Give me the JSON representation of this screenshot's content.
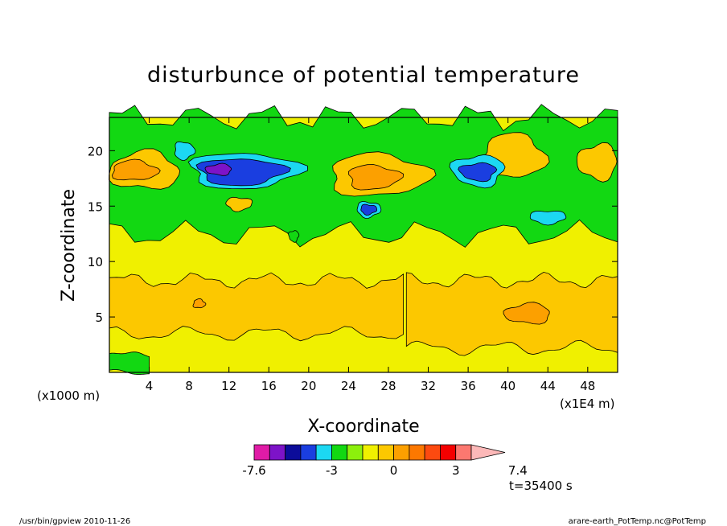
{
  "chart_data": {
    "type": "heatmap",
    "title": "disturbunce of potential temperature",
    "xlabel": "X-coordinate",
    "ylabel": "Z-coordinate",
    "x_unit_left": "(x1000 m)",
    "x_unit_right": "(x1E4 m)",
    "xlim": [
      0,
      51
    ],
    "ylim": [
      0,
      23
    ],
    "x_ticks": [
      4,
      8,
      12,
      16,
      20,
      24,
      28,
      32,
      36,
      40,
      44,
      48
    ],
    "y_ticks": [
      5,
      10,
      15,
      20
    ],
    "colorbar": {
      "levels": [
        -7.6,
        -6.1,
        -5.3,
        -4.5,
        -3.8,
        -3,
        -2.2,
        -1.5,
        -0.7,
        0,
        0.8,
        1.5,
        2.3,
        3,
        3.8,
        4.6,
        5.3,
        7.4
      ],
      "colors": [
        "#e01ba6",
        "#7d13c8",
        "#0c0c9a",
        "#1a3ee0",
        "#1cd8f2",
        "#12d812",
        "#8cf00c",
        "#f0f000",
        "#fcc800",
        "#fca000",
        "#fc7800",
        "#fc4a10",
        "#f40000",
        "#fc7870",
        "#fcb8b8"
      ],
      "labels": [
        {
          "text": "-7.6",
          "at": -7.6
        },
        {
          "text": "-3",
          "at": -3
        },
        {
          "text": "0",
          "at": 0
        },
        {
          "text": "3",
          "at": 3
        },
        {
          "text": "7.4",
          "at": 7.4
        }
      ]
    },
    "fields": {
      "background": "#f0f000",
      "regions": [
        {
          "level": "negative_weak",
          "color": "#12d812"
        },
        {
          "level": "positive_weak",
          "color": "#fcc800"
        },
        {
          "level": "positive_mid",
          "color": "#fca000"
        },
        {
          "level": "negative_mid",
          "color": "#1cd8f2"
        },
        {
          "level": "negative_strong",
          "color": "#1a3ee0"
        },
        {
          "level": "negative_max",
          "color": "#7d13c8"
        }
      ]
    },
    "time_label": "t=35400 s"
  },
  "footer": {
    "left": "/usr/bin/gpview   2010-11-26",
    "right": "arare-earth_PotTemp.nc@PotTemp"
  }
}
